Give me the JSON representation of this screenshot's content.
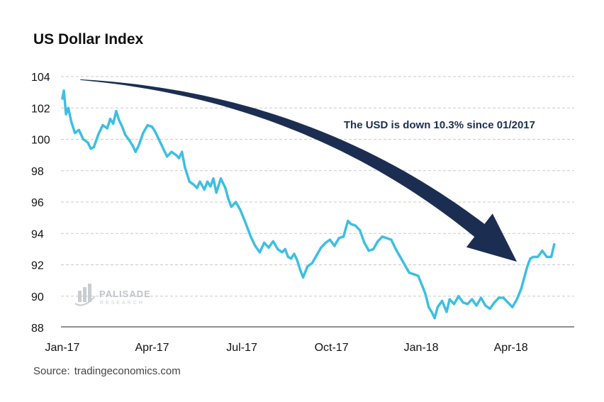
{
  "chart_data": {
    "type": "line",
    "title": "US Dollar Index",
    "xlabel": "",
    "ylabel": "",
    "ylim": [
      88,
      104
    ],
    "xlim": [
      0,
      17
    ],
    "y_ticks": [
      104,
      102,
      100,
      98,
      96,
      94,
      92,
      90,
      88
    ],
    "x_ticks": [
      {
        "label": "Jan-17",
        "value": 0
      },
      {
        "label": "Apr-17",
        "value": 3
      },
      {
        "label": "Jul-17",
        "value": 6
      },
      {
        "label": "Oct-17",
        "value": 9
      },
      {
        "label": "Jan-18",
        "value": 12
      },
      {
        "label": "Apr-18",
        "value": 15
      }
    ],
    "grid": "horizontal dashed",
    "x_unit": "months since Jan 2017",
    "series": [
      {
        "name": "US Dollar Index",
        "color": "#3dbfe0",
        "points": [
          [
            0.0,
            102.6
          ],
          [
            0.05,
            103.1
          ],
          [
            0.12,
            101.6
          ],
          [
            0.2,
            102.0
          ],
          [
            0.3,
            101.1
          ],
          [
            0.42,
            100.4
          ],
          [
            0.55,
            100.6
          ],
          [
            0.7,
            100.0
          ],
          [
            0.85,
            99.8
          ],
          [
            0.95,
            99.4
          ],
          [
            1.05,
            99.5
          ],
          [
            1.2,
            100.3
          ],
          [
            1.35,
            100.9
          ],
          [
            1.5,
            100.7
          ],
          [
            1.6,
            101.3
          ],
          [
            1.7,
            101.0
          ],
          [
            1.8,
            101.8
          ],
          [
            1.9,
            101.2
          ],
          [
            2.0,
            100.8
          ],
          [
            2.1,
            100.3
          ],
          [
            2.25,
            99.9
          ],
          [
            2.35,
            99.6
          ],
          [
            2.45,
            99.2
          ],
          [
            2.55,
            99.6
          ],
          [
            2.7,
            100.4
          ],
          [
            2.85,
            100.9
          ],
          [
            3.0,
            100.8
          ],
          [
            3.1,
            100.5
          ],
          [
            3.2,
            100.1
          ],
          [
            3.35,
            99.5
          ],
          [
            3.5,
            98.9
          ],
          [
            3.65,
            99.2
          ],
          [
            3.8,
            99.0
          ],
          [
            3.9,
            98.8
          ],
          [
            4.0,
            99.2
          ],
          [
            4.1,
            98.2
          ],
          [
            4.25,
            97.3
          ],
          [
            4.4,
            97.1
          ],
          [
            4.5,
            96.9
          ],
          [
            4.6,
            97.3
          ],
          [
            4.75,
            96.8
          ],
          [
            4.85,
            97.3
          ],
          [
            4.95,
            97.0
          ],
          [
            5.05,
            97.5
          ],
          [
            5.15,
            96.6
          ],
          [
            5.3,
            97.5
          ],
          [
            5.45,
            96.9
          ],
          [
            5.55,
            96.2
          ],
          [
            5.65,
            95.7
          ],
          [
            5.8,
            96.0
          ],
          [
            5.95,
            95.5
          ],
          [
            6.1,
            94.8
          ],
          [
            6.2,
            94.3
          ],
          [
            6.3,
            93.8
          ],
          [
            6.45,
            93.2
          ],
          [
            6.6,
            92.8
          ],
          [
            6.75,
            93.4
          ],
          [
            6.9,
            93.1
          ],
          [
            7.05,
            93.5
          ],
          [
            7.2,
            93.0
          ],
          [
            7.35,
            92.8
          ],
          [
            7.45,
            93.0
          ],
          [
            7.55,
            92.5
          ],
          [
            7.65,
            92.4
          ],
          [
            7.75,
            92.7
          ],
          [
            7.85,
            92.3
          ],
          [
            7.95,
            91.7
          ],
          [
            8.05,
            91.2
          ],
          [
            8.2,
            91.9
          ],
          [
            8.35,
            92.1
          ],
          [
            8.5,
            92.6
          ],
          [
            8.65,
            93.1
          ],
          [
            8.8,
            93.4
          ],
          [
            8.95,
            93.6
          ],
          [
            9.1,
            93.2
          ],
          [
            9.25,
            93.7
          ],
          [
            9.4,
            93.8
          ],
          [
            9.55,
            94.8
          ],
          [
            9.65,
            94.6
          ],
          [
            9.8,
            94.5
          ],
          [
            9.95,
            94.2
          ],
          [
            10.1,
            93.4
          ],
          [
            10.25,
            92.9
          ],
          [
            10.4,
            93.0
          ],
          [
            10.55,
            93.5
          ],
          [
            10.7,
            93.8
          ],
          [
            10.85,
            93.7
          ],
          [
            11.0,
            93.6
          ],
          [
            11.15,
            93.0
          ],
          [
            11.3,
            92.5
          ],
          [
            11.45,
            92.0
          ],
          [
            11.6,
            91.5
          ],
          [
            11.75,
            91.4
          ],
          [
            11.9,
            91.3
          ],
          [
            12.05,
            90.6
          ],
          [
            12.15,
            90.1
          ],
          [
            12.25,
            89.3
          ],
          [
            12.35,
            89.0
          ],
          [
            12.45,
            88.6
          ],
          [
            12.55,
            89.3
          ],
          [
            12.7,
            89.7
          ],
          [
            12.85,
            89.0
          ],
          [
            12.95,
            89.8
          ],
          [
            13.1,
            89.5
          ],
          [
            13.25,
            90.0
          ],
          [
            13.4,
            89.6
          ],
          [
            13.55,
            89.5
          ],
          [
            13.7,
            89.8
          ],
          [
            13.85,
            89.4
          ],
          [
            14.0,
            89.9
          ],
          [
            14.15,
            89.4
          ],
          [
            14.3,
            89.2
          ],
          [
            14.45,
            89.6
          ],
          [
            14.6,
            89.9
          ],
          [
            14.75,
            89.9
          ],
          [
            14.9,
            89.6
          ],
          [
            15.05,
            89.3
          ],
          [
            15.2,
            89.8
          ],
          [
            15.35,
            90.5
          ],
          [
            15.45,
            91.2
          ],
          [
            15.55,
            91.9
          ],
          [
            15.65,
            92.4
          ],
          [
            15.75,
            92.5
          ],
          [
            15.9,
            92.5
          ],
          [
            16.05,
            92.9
          ],
          [
            16.2,
            92.5
          ],
          [
            16.35,
            92.5
          ],
          [
            16.45,
            93.3
          ]
        ]
      }
    ],
    "annotation": {
      "text": "The USD is down 10.3% since 01/2017",
      "from": [
        0.6,
        103.8
      ],
      "to": [
        15.2,
        92.2
      ]
    }
  },
  "source_label": "Source:",
  "source_text": "tradingeconomics.com",
  "watermark": {
    "name": "PALISADE",
    "sub": "RESEARCH"
  }
}
